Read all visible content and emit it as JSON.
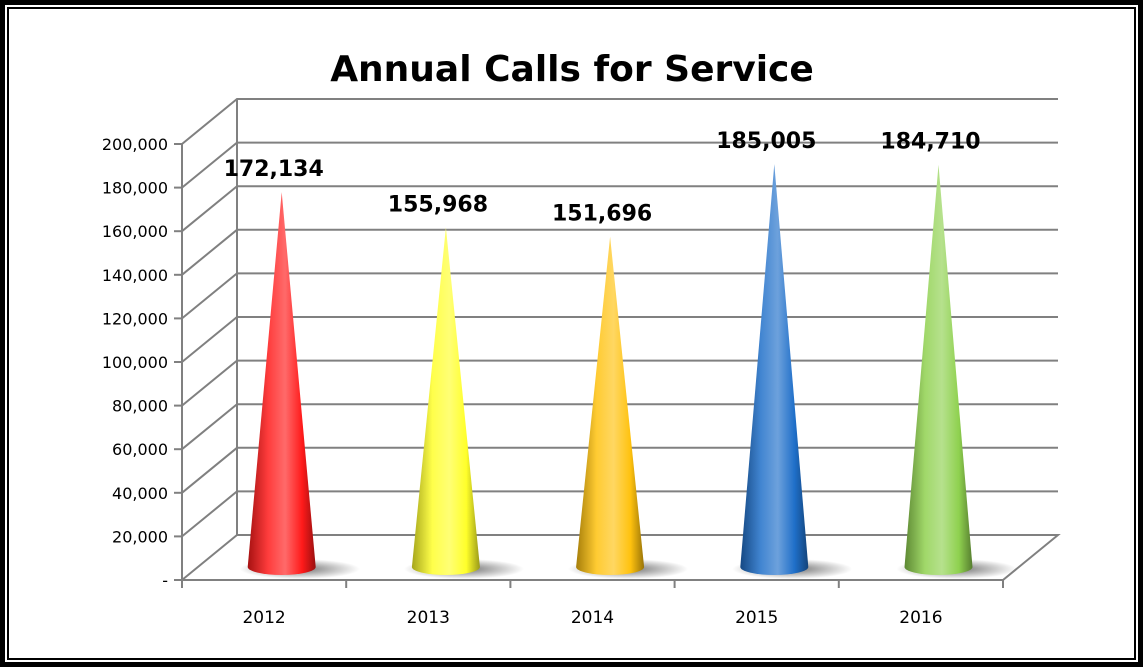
{
  "chart_data": {
    "type": "bar",
    "style": "3d-cone",
    "title": "Annual Calls for Service",
    "categories": [
      "2012",
      "2013",
      "2014",
      "2015",
      "2016"
    ],
    "values": [
      172134,
      155968,
      151696,
      185005,
      184710
    ],
    "data_labels": [
      "172,134",
      "155,968",
      "151,696",
      "185,005",
      "184,710"
    ],
    "colors": [
      "#ff1a1a",
      "#ffff2a",
      "#ffc20e",
      "#1f6fc9",
      "#8fd14f"
    ],
    "ylim": [
      0,
      200000
    ],
    "yticks": [
      0,
      20000,
      40000,
      60000,
      80000,
      100000,
      120000,
      140000,
      160000,
      180000,
      200000
    ],
    "ytick_labels": [
      "-",
      "20,000",
      "40,000",
      "60,000",
      "80,000",
      "100,000",
      "120,000",
      "140,000",
      "160,000",
      "180,000",
      "200,000"
    ],
    "grid": true,
    "legend": "none"
  }
}
